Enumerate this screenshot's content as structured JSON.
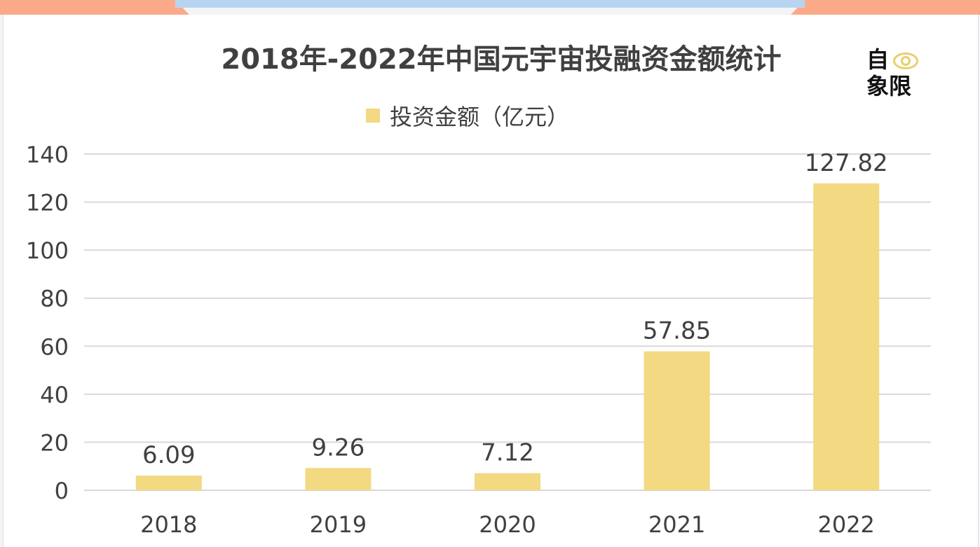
{
  "chart_data": {
    "type": "bar",
    "title": "2018年-2022年中国元宇宙投融资金额统计",
    "categories": [
      "2018",
      "2019",
      "2020",
      "2021",
      "2022"
    ],
    "series": [
      {
        "name": "投资金额（亿元）",
        "values": [
          6.09,
          9.26,
          7.12,
          57.85,
          127.82
        ],
        "color": "#f2d982"
      }
    ],
    "data_labels": [
      "6.09",
      "9.26",
      "7.12",
      "57.85",
      "127.82"
    ],
    "ylim": [
      0,
      140
    ],
    "yticks": [
      "0",
      "20",
      "40",
      "60",
      "80",
      "100",
      "120",
      "140"
    ],
    "grid": true,
    "legend": "top-center"
  },
  "logo": {
    "line1": "自",
    "line2": "象限"
  }
}
